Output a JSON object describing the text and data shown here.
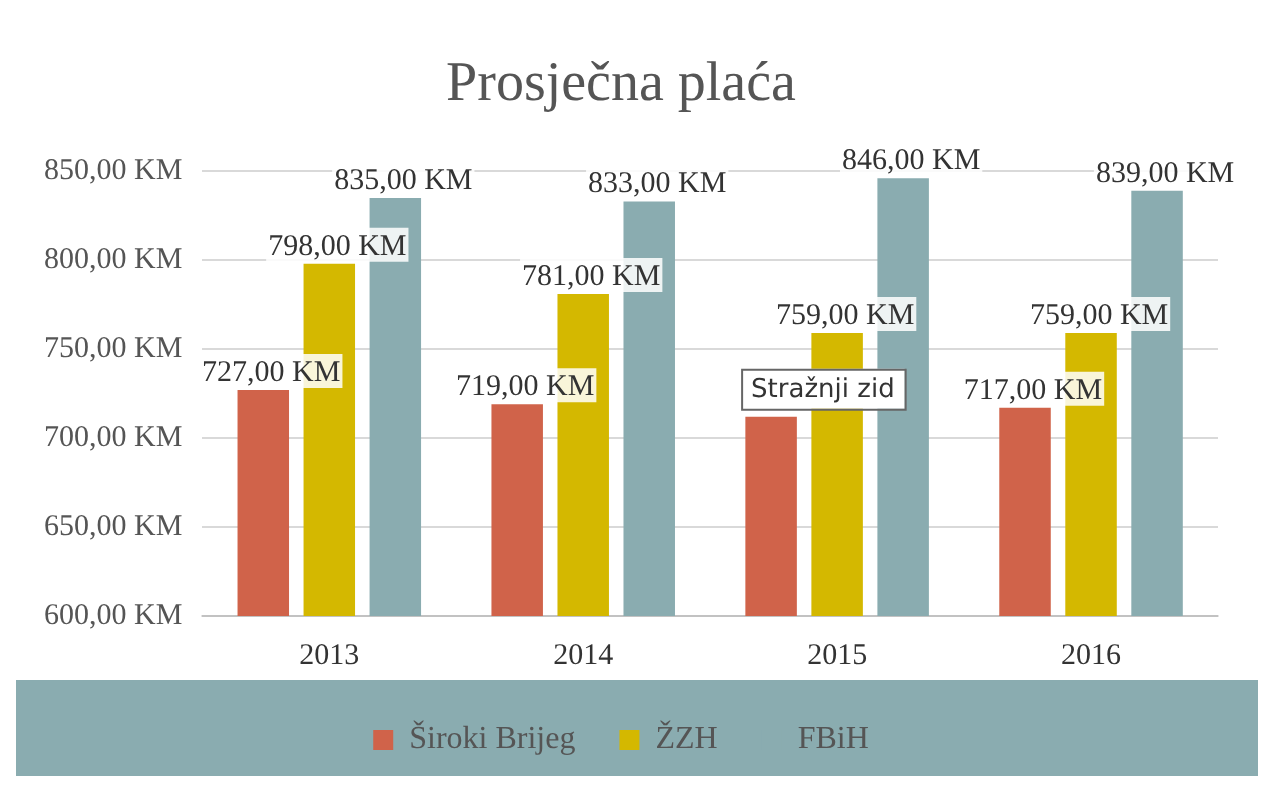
{
  "chart_data": {
    "type": "bar",
    "title": "Prosječna plaća",
    "categories": [
      "2013",
      "2014",
      "2015",
      "2016"
    ],
    "series": [
      {
        "name": "Široki Brijeg",
        "color": "#d0634a",
        "values": [
          727,
          719,
          712,
          717
        ],
        "value_labels": [
          "727,00 KM",
          "719,00 KM",
          null,
          "717,00 KM"
        ]
      },
      {
        "name": "ŽZH",
        "color": "#d4b800",
        "values": [
          798,
          781,
          759,
          759
        ],
        "value_labels": [
          "798,00 KM",
          "781,00 KM",
          "759,00 KM",
          "759,00 KM"
        ]
      },
      {
        "name": "FBiH",
        "color": "#8aacb0",
        "values": [
          835,
          833,
          846,
          839
        ],
        "value_labels": [
          "835,00 KM",
          "833,00 KM",
          "846,00 KM",
          "839,00 KM"
        ]
      }
    ],
    "ylim": [
      600,
      850
    ],
    "yticks": [
      {
        "value": 600,
        "label": "600,00 KM"
      },
      {
        "value": 650,
        "label": "650,00 KM"
      },
      {
        "value": 700,
        "label": "700,00 KM"
      },
      {
        "value": 750,
        "label": "750,00 KM"
      },
      {
        "value": 800,
        "label": "800,00 KM"
      },
      {
        "value": 850,
        "label": "850,00 KM"
      }
    ],
    "grid": "y",
    "legend": "bottom",
    "annotations": [
      "Stražnji zid"
    ]
  }
}
